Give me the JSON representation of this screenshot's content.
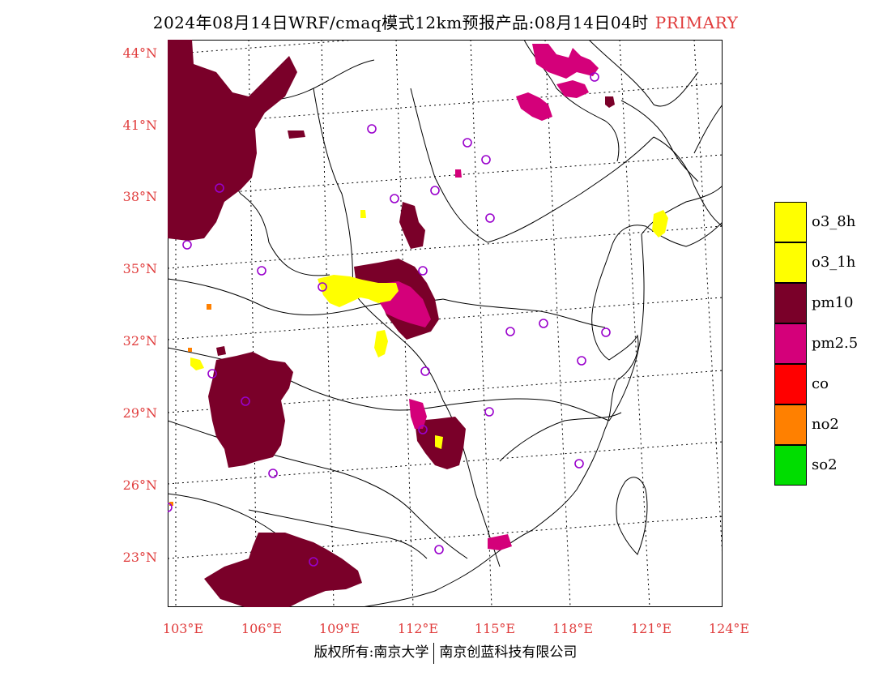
{
  "title": "2024年08月14日WRF/cmaq模式12km预报产品:08月14日04时",
  "title_tag": "PRIMARY",
  "lat_labels": [
    "44°N",
    "41°N",
    "38°N",
    "35°N",
    "32°N",
    "29°N",
    "26°N",
    "23°N"
  ],
  "lon_labels": [
    "103°E",
    "106°E",
    "109°E",
    "112°E",
    "115°E",
    "118°E",
    "121°E",
    "124°E"
  ],
  "legend": [
    {
      "label": "o3_8h",
      "color": "#ffff00"
    },
    {
      "label": "o3_1h",
      "color": "#ffff00"
    },
    {
      "label": "pm10",
      "color": "#7a0029"
    },
    {
      "label": "pm2.5",
      "color": "#d4007a"
    },
    {
      "label": "co",
      "color": "#ff0000"
    },
    {
      "label": "no2",
      "color": "#ff8000"
    },
    {
      "label": "so2",
      "color": "#00dd00"
    }
  ],
  "footer_left": "版权所有:南京大学",
  "footer_right": "南京创蓝科技有限公司",
  "colors": {
    "pm10": "#7a0029",
    "pm25": "#d4007a",
    "o3": "#ffff00",
    "no2": "#ff8000",
    "station": "#9900cc",
    "label_red": "#e03c3c"
  }
}
